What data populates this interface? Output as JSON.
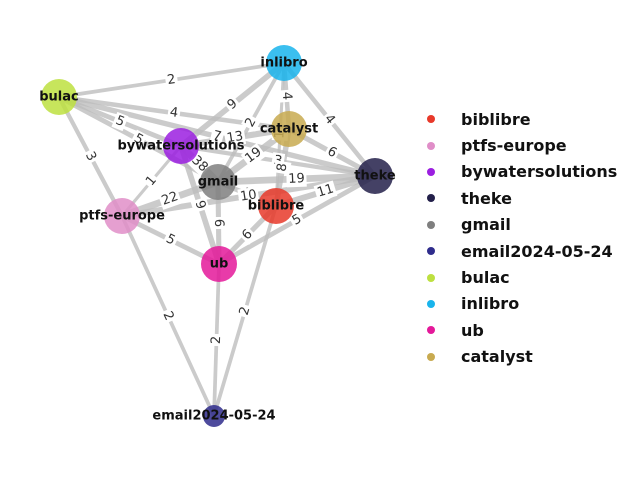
{
  "graph": {
    "nodes": [
      {
        "id": "biblibre",
        "label": "biblibre",
        "color": "#e8392a"
      },
      {
        "id": "ptfs-europe",
        "label": "ptfs-europe",
        "color": "#e08ec8"
      },
      {
        "id": "bywatersolutions",
        "label": "bywatersolutions",
        "color": "#9b1fe0"
      },
      {
        "id": "theke",
        "label": "theke",
        "color": "#23204a"
      },
      {
        "id": "gmail",
        "label": "gmail",
        "color": "#7f7f7f"
      },
      {
        "id": "email2024-05-24",
        "label": "email2024-05-24",
        "color": "#2f2c8c"
      },
      {
        "id": "bulac",
        "label": "bulac",
        "color": "#bde040"
      },
      {
        "id": "inlibro",
        "label": "inlibro",
        "color": "#19b4ec"
      },
      {
        "id": "ub",
        "label": "ub",
        "color": "#e4199a"
      },
      {
        "id": "catalyst",
        "label": "catalyst",
        "color": "#c8aa50"
      }
    ],
    "edges": [
      {
        "source": "bulac",
        "target": "inlibro",
        "weight": "2"
      },
      {
        "source": "bulac",
        "target": "catalyst",
        "weight": "4"
      },
      {
        "source": "bulac",
        "target": "bywatersolutions",
        "weight": "5"
      },
      {
        "source": "bulac",
        "target": "gmail",
        "weight": "5"
      },
      {
        "source": "bulac",
        "target": "ptfs-europe",
        "weight": "3"
      },
      {
        "source": "bulac",
        "target": "theke",
        "weight": "7"
      },
      {
        "source": "inlibro",
        "target": "bywatersolutions",
        "weight": "9"
      },
      {
        "source": "inlibro",
        "target": "theke",
        "weight": "4"
      },
      {
        "source": "inlibro",
        "target": "catalyst",
        "weight": "4"
      },
      {
        "source": "inlibro",
        "target": "gmail",
        "weight": "2"
      },
      {
        "source": "inlibro",
        "target": "biblibre",
        "weight": "1"
      },
      {
        "source": "bywatersolutions",
        "target": "catalyst",
        "weight": "13"
      },
      {
        "source": "bywatersolutions",
        "target": "theke",
        "weight": "3"
      },
      {
        "source": "bywatersolutions",
        "target": "gmail",
        "weight": "38"
      },
      {
        "source": "bywatersolutions",
        "target": "ptfs-europe",
        "weight": "1"
      },
      {
        "source": "bywatersolutions",
        "target": "ub",
        "weight": "9"
      },
      {
        "source": "catalyst",
        "target": "theke",
        "weight": "6"
      },
      {
        "source": "catalyst",
        "target": "gmail",
        "weight": "19"
      },
      {
        "source": "catalyst",
        "target": "biblibre",
        "weight": "8"
      },
      {
        "source": "gmail",
        "target": "theke",
        "weight": "19"
      },
      {
        "source": "gmail",
        "target": "ptfs-europe",
        "weight": "22"
      },
      {
        "source": "gmail",
        "target": "ub",
        "weight": "6"
      },
      {
        "source": "gmail",
        "target": "biblibre",
        "weight": "5"
      },
      {
        "source": "ptfs-europe",
        "target": "theke",
        "weight": "10"
      },
      {
        "source": "ptfs-europe",
        "target": "ub",
        "weight": "5"
      },
      {
        "source": "ptfs-europe",
        "target": "email2024-05-24",
        "weight": "2"
      },
      {
        "source": "biblibre",
        "target": "theke",
        "weight": "11"
      },
      {
        "source": "biblibre",
        "target": "ub",
        "weight": "6"
      },
      {
        "source": "ub",
        "target": "theke",
        "weight": "5"
      },
      {
        "source": "ub",
        "target": "email2024-05-24",
        "weight": "2"
      },
      {
        "source": "biblibre",
        "target": "email2024-05-24",
        "weight": "2"
      }
    ]
  },
  "legend": {
    "items": [
      {
        "label": "biblibre",
        "color": "#e8392a"
      },
      {
        "label": "ptfs-europe",
        "color": "#e08ec8"
      },
      {
        "label": "bywatersolutions",
        "color": "#9b1fe0"
      },
      {
        "label": "theke",
        "color": "#23204a"
      },
      {
        "label": "gmail",
        "color": "#7f7f7f"
      },
      {
        "label": "email2024-05-24",
        "color": "#2f2c8c"
      },
      {
        "label": "bulac",
        "color": "#bde040"
      },
      {
        "label": "inlibro",
        "color": "#19b4ec"
      },
      {
        "label": "ub",
        "color": "#e4199a"
      },
      {
        "label": "catalyst",
        "color": "#c8aa50"
      }
    ]
  }
}
